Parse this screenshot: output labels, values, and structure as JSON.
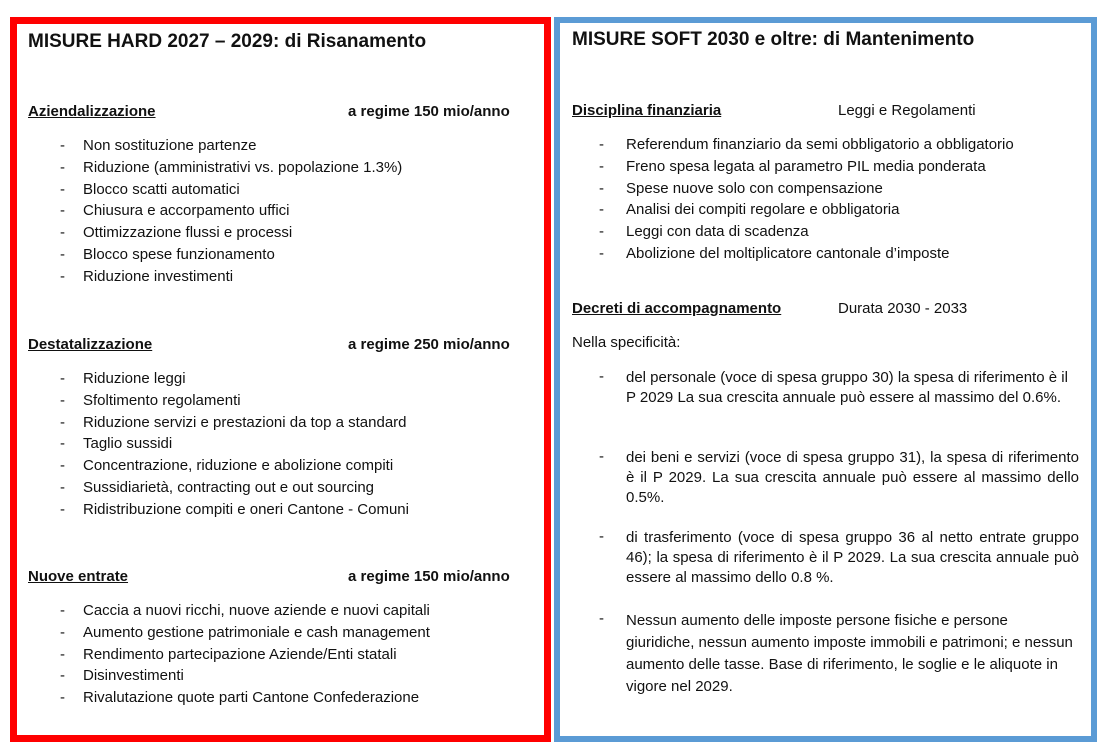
{
  "hard": {
    "title": "MISURE HARD 2027 – 2029: di Risanamento",
    "sections": [
      {
        "heading": "Aziendalizzazione",
        "amount": "a regime 150 mio/anno",
        "items": [
          "Non sostituzione partenze",
          "Riduzione (amministrativi vs. popolazione 1.3%)",
          "Blocco scatti automatici",
          "Chiusura e accorpamento uffici",
          "Ottimizzazione flussi e processi",
          "Blocco spese funzionamento",
          "Riduzione investimenti"
        ]
      },
      {
        "heading": "Destatalizzazione",
        "amount": "a regime 250 mio/anno",
        "items": [
          "Riduzione leggi",
          "Sfoltimento regolamenti",
          "Riduzione servizi e prestazioni da top a standard",
          "Taglio sussidi",
          "Concentrazione, riduzione e abolizione compiti",
          "Sussidiarietà, contracting out e out sourcing",
          "Ridistribuzione compiti e oneri Cantone - Comuni"
        ]
      },
      {
        "heading": "Nuove entrate",
        "amount": "a regime 150 mio/anno",
        "items": [
          "Caccia a nuovi ricchi, nuove aziende e nuovi capitali",
          "Aumento gestione patrimoniale e cash management",
          "Rendimento partecipazione Aziende/Enti statali",
          "Disinvestimenti",
          "Rivalutazione quote parti Cantone Confederazione"
        ]
      }
    ]
  },
  "soft": {
    "title": "MISURE SOFT 2030 e oltre: di Mantenimento",
    "discipline": {
      "heading": "Disciplina finanziaria",
      "note": "Leggi e Regolamenti",
      "items": [
        "Referendum finanziario da semi obbligatorio a obbligatorio",
        "Freno spesa legata al parametro PIL media ponderata",
        "Spese nuove solo con compensazione",
        "Analisi dei compiti regolare e obbligatoria",
        "Leggi con data di scadenza",
        "Abolizione del moltiplicatore cantonale d’imposte"
      ]
    },
    "decrees": {
      "heading": "Decreti di accompagnamento",
      "note": "Durata 2030 - 2033",
      "intro": "Nella specificità:",
      "items": [
        "del personale (voce di spesa gruppo 30) la spesa di riferimento è il P 2029 La sua crescita annuale può essere al massimo del 0.6%.",
        "dei beni e servizi (voce di spesa gruppo 31), la spesa di riferimento è il P 2029. La sua crescita annuale può essere al massimo dello 0.5%.",
        "di trasferimento (voce di spesa gruppo 36 al netto entrate gruppo 46); la spesa di riferimento è il P 2029.  La sua crescita annuale può essere al massimo dello 0.8 %.",
        "Nessun aumento delle imposte persone fisiche e persone giuridiche, nessun aumento imposte immobili e patrimoni; e nessun aumento delle tasse. Base di riferimento, le soglie e le aliquote in vigore nel 2029."
      ]
    },
    "bullet": "-"
  },
  "colors": {
    "hard_border": "#ff0000",
    "soft_border": "#5b9bd5"
  }
}
